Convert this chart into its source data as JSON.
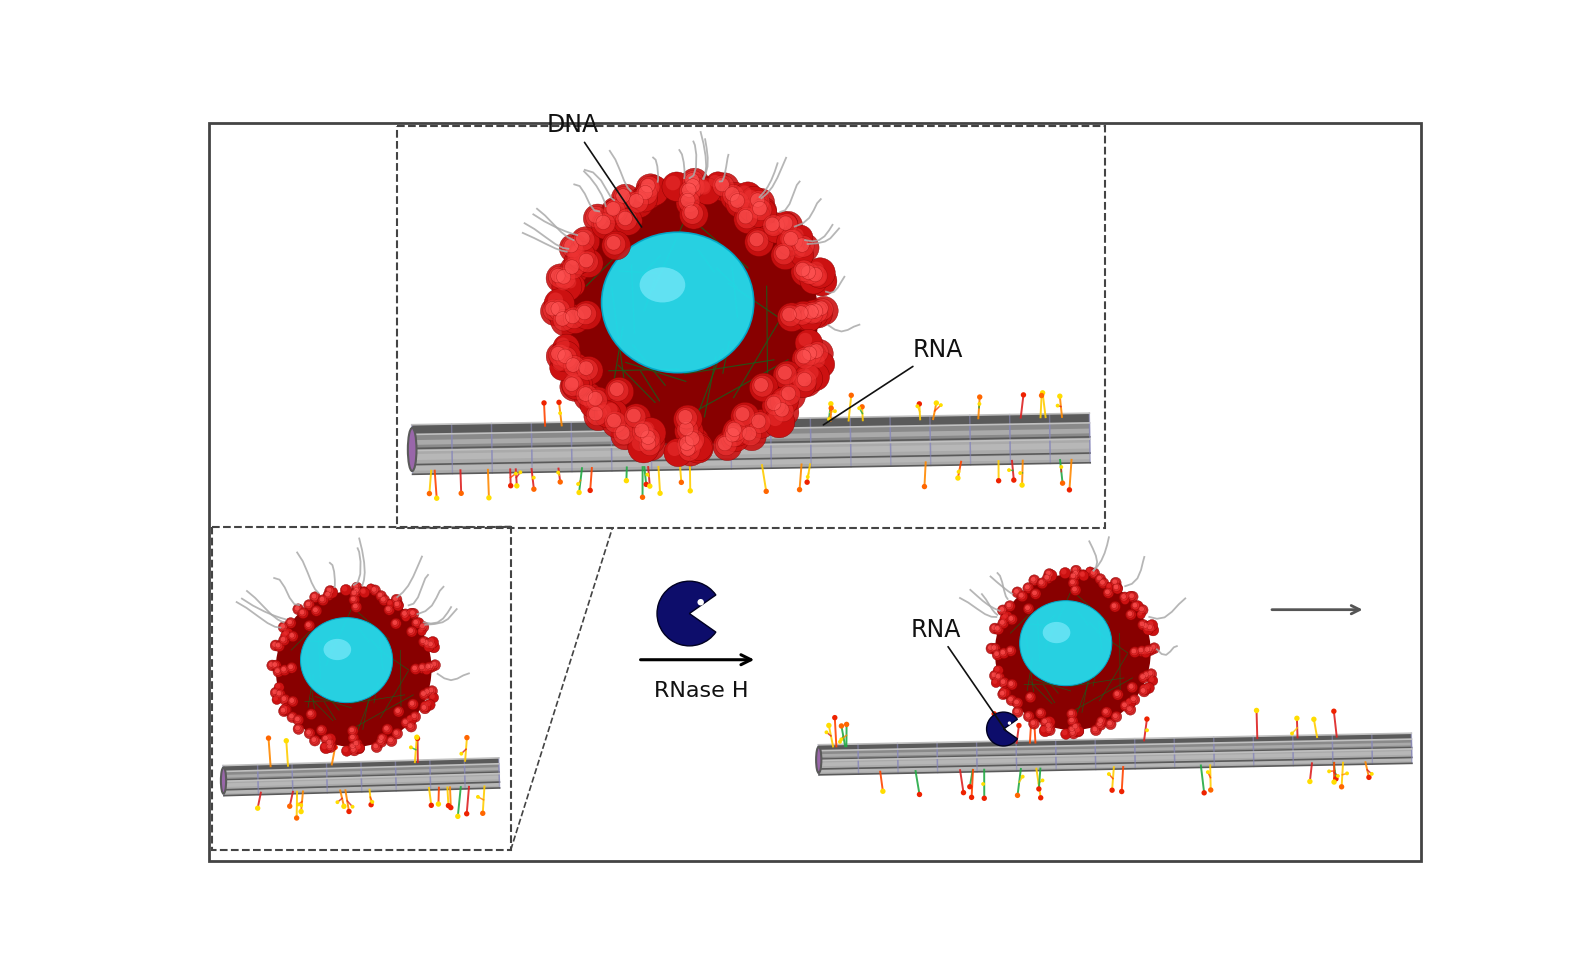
{
  "bg_color": "#ffffff",
  "border_color": "#444444",
  "vesicle_red": "#cc1111",
  "vesicle_red_dark": "#880000",
  "vesicle_red_light": "#ee3333",
  "vesicle_red_highlight": "#ff5555",
  "vesicle_cyan": "#22ddee",
  "vesicle_cyan_light": "#88eeff",
  "dna_net_color": "#1a5c1a",
  "enzyme_color": "#0d0d6b",
  "filament_main": "#8a8a8a",
  "filament_dark": "#5a5a5a",
  "filament_light": "#c0c0c0",
  "filament_stripe": "#8888bb",
  "filament_end": "#9966aa",
  "strand_colors": [
    "#ff8800",
    "#ffcc00",
    "#dd2222",
    "#22aa44",
    "#ff4400"
  ],
  "gray_strand": "#aaaaaa",
  "dashed_color": "#444444",
  "arrow_color": "#333333",
  "label_fontsize": 17,
  "rnase_fontsize": 16,
  "label_color": "#111111",
  "dna_label": "DNA",
  "rna_label": "RNA",
  "rnase_label": "RNase H"
}
